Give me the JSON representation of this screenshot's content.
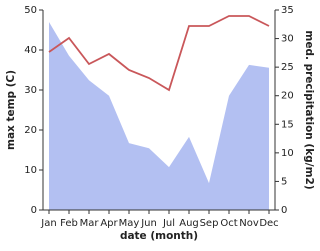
{
  "chart_data": {
    "type": "line",
    "x_label": "date (month)",
    "y_label": "max temp (C)",
    "y2_label": "med. precipitation (kg/m2)",
    "categories": [
      "Jan",
      "Feb",
      "Mar",
      "Apr",
      "May",
      "Jun",
      "Jul",
      "Aug",
      "Sep",
      "Oct",
      "Nov",
      "Dec"
    ],
    "series": [
      {
        "type": "area",
        "axis": "y2",
        "color": "#b3c0f2",
        "values": [
          32.9,
          27,
          22.7,
          20,
          11.7,
          10.8,
          7.5,
          12.8,
          4.7,
          20,
          25.4,
          24.9
        ]
      },
      {
        "type": "line",
        "color": "#c9575a",
        "values": [
          39.5,
          43,
          36.5,
          39,
          35,
          33,
          30,
          46,
          46,
          48.5,
          48.5,
          46
        ]
      }
    ],
    "ylim": [
      0,
      50
    ],
    "yticks": [
      0,
      10,
      20,
      30,
      40,
      50
    ],
    "y2lim": [
      0,
      35
    ],
    "y2ticks": [
      0,
      5,
      10,
      15,
      20,
      25,
      30,
      35
    ]
  }
}
